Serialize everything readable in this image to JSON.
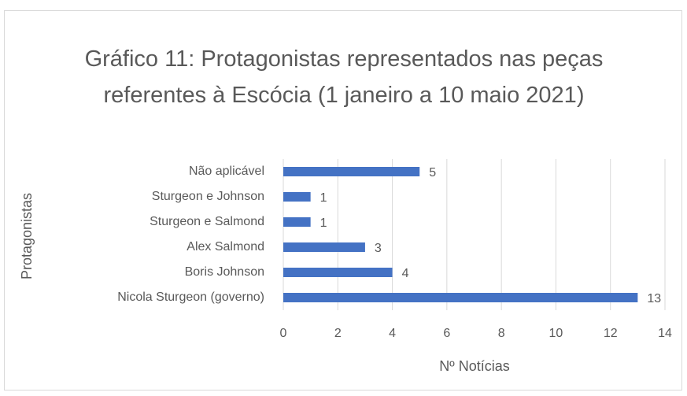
{
  "chart_data": {
    "type": "bar",
    "orientation": "horizontal",
    "title": "Gráfico 11: Protagonistas representados nas peças referentes à Escócia (1 janeiro a 10 maio 2021)",
    "categories": [
      "Não aplicável",
      "Sturgeon e Johnson",
      "Sturgeon e Salmond",
      "Alex Salmond",
      "Boris Johnson",
      "Nicola Sturgeon (governo)"
    ],
    "values": [
      5,
      1,
      1,
      3,
      4,
      13
    ],
    "color": "#4472c4",
    "xlabel": "Nº Notícias",
    "ylabel": "Protagonistas",
    "xlim": [
      0,
      14
    ],
    "xticks": [
      0,
      2,
      4,
      6,
      8,
      10,
      12,
      14
    ],
    "grid": true
  }
}
